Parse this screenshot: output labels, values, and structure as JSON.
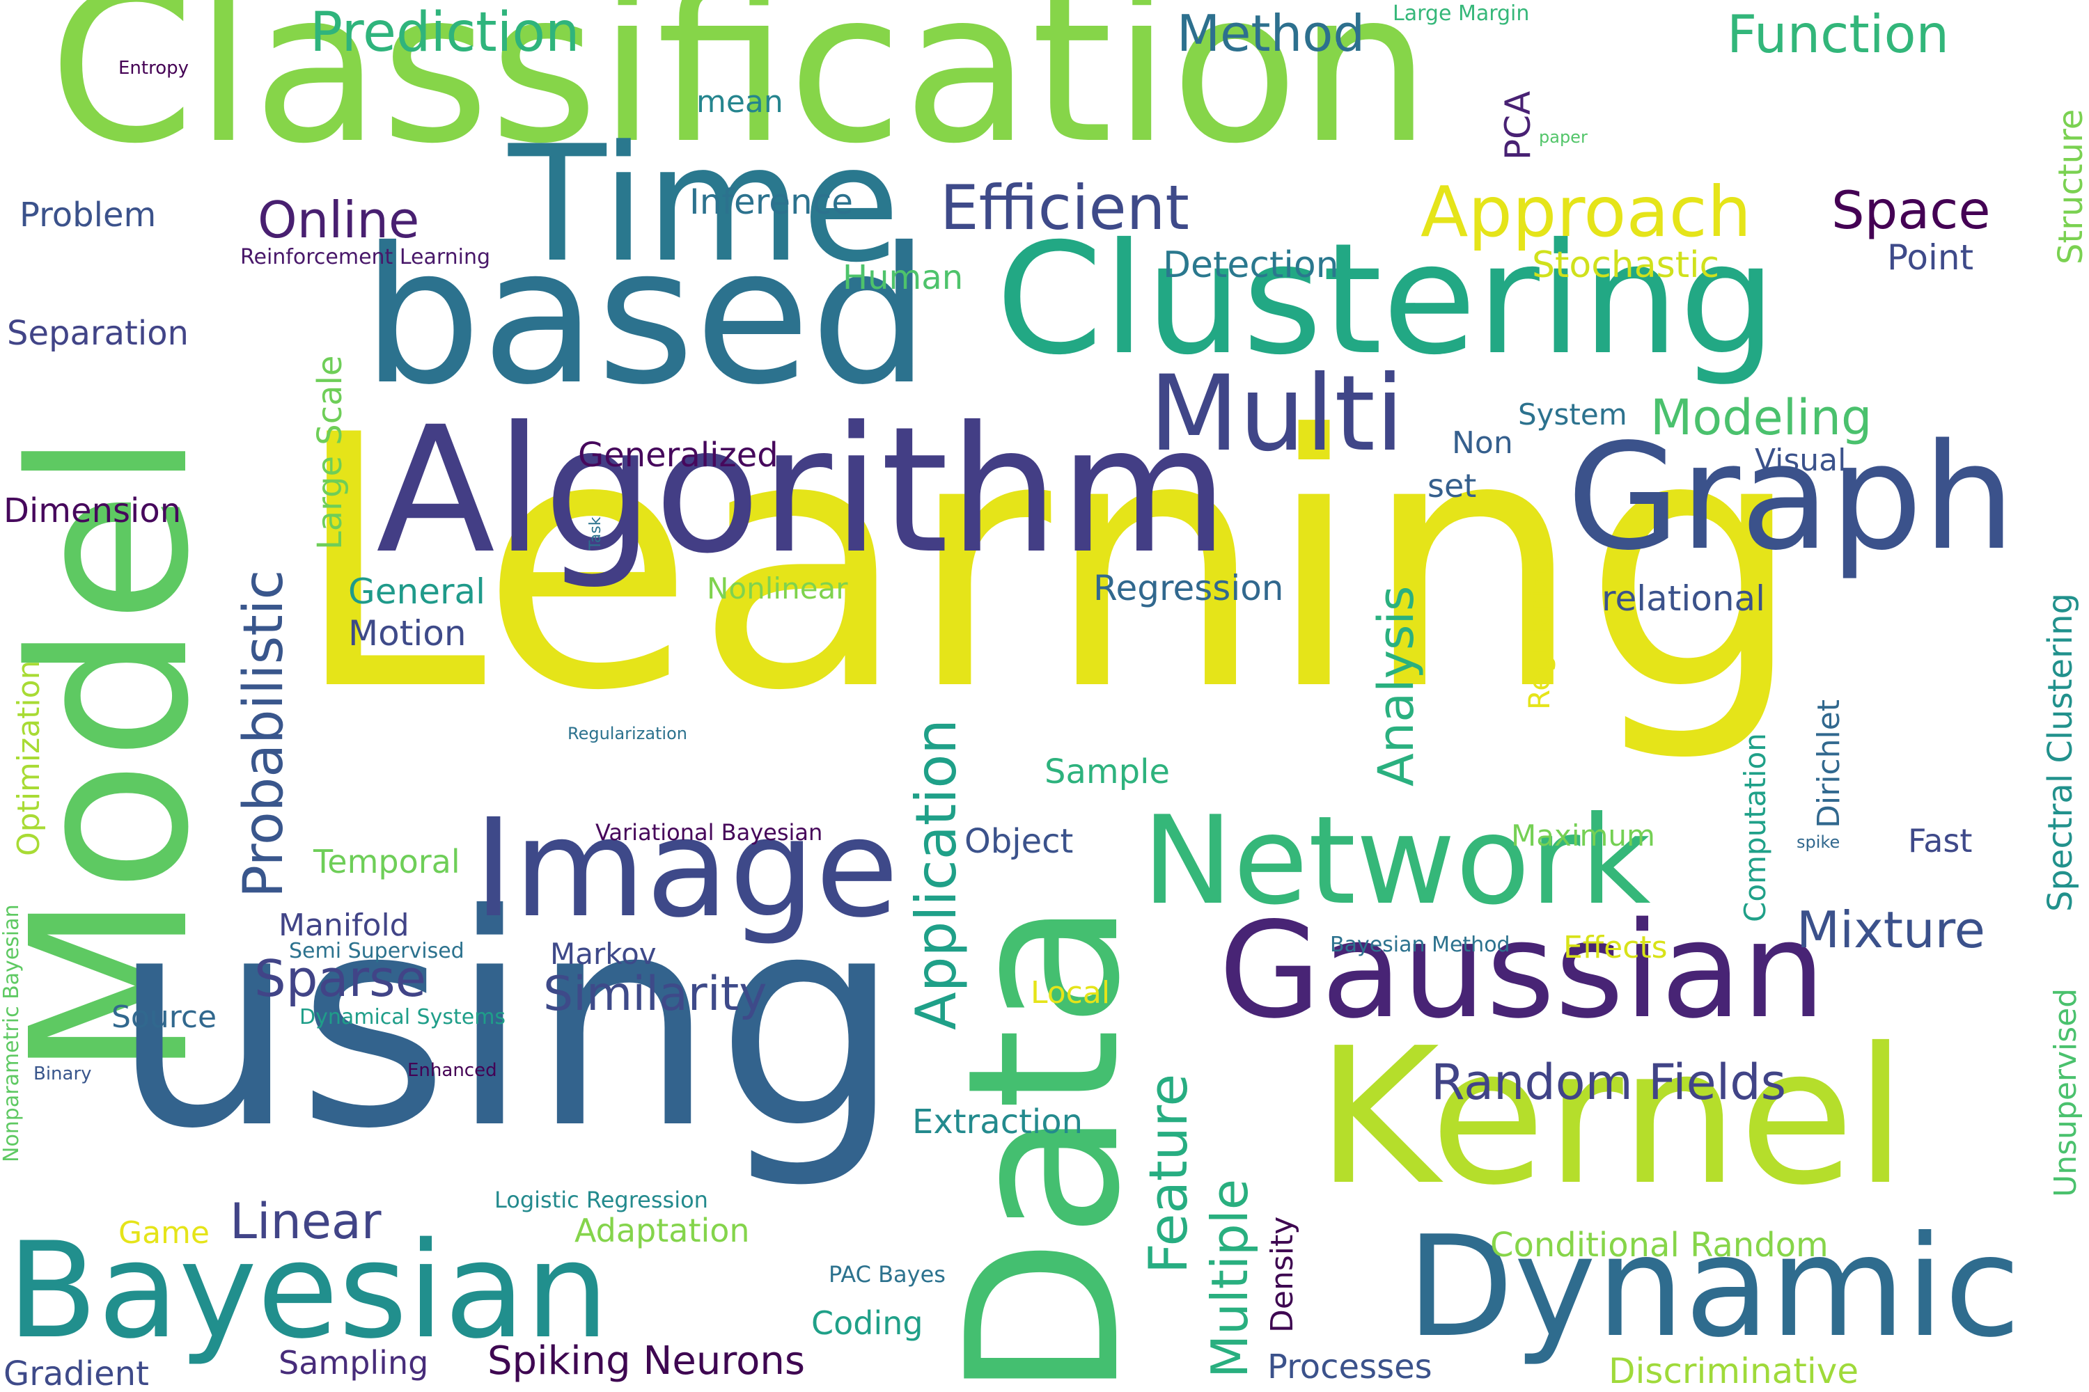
{
  "words": [
    {
      "text": "Classification",
      "color": "#86d549"
    },
    {
      "text": "Learning",
      "color": "#e5e419"
    },
    {
      "text": "Model",
      "color": "#5ec962"
    },
    {
      "text": "using",
      "color": "#33638d"
    },
    {
      "text": "based",
      "color": "#2c728e"
    },
    {
      "text": "Algorithm",
      "color": "#433e85"
    },
    {
      "text": "Time",
      "color": "#2a788e"
    },
    {
      "text": "Clustering",
      "color": "#22a884"
    },
    {
      "text": "Graph",
      "color": "#3b528b"
    },
    {
      "text": "Data",
      "color": "#44bf70"
    },
    {
      "text": "Kernel",
      "color": "#b5de2b"
    },
    {
      "text": "Gaussian",
      "color": "#482475"
    },
    {
      "text": "Network",
      "color": "#35b779"
    },
    {
      "text": "Image",
      "color": "#3e4989"
    },
    {
      "text": "Bayesian",
      "color": "#218f8d"
    },
    {
      "text": "Dynamic",
      "color": "#2f6c8e"
    },
    {
      "text": "Multi",
      "color": "#404688"
    },
    {
      "text": "Approach",
      "color": "#e5e419"
    },
    {
      "text": "Efficient",
      "color": "#3e4a89"
    },
    {
      "text": "Online",
      "color": "#481f70"
    },
    {
      "text": "Prediction",
      "color": "#2fb47c"
    },
    {
      "text": "Method",
      "color": "#2d708e"
    },
    {
      "text": "Function",
      "color": "#32b67a"
    },
    {
      "text": "Space",
      "color": "#440154"
    },
    {
      "text": "Probabilistic",
      "color": "#39568c"
    },
    {
      "text": "Application",
      "color": "#1fa088"
    },
    {
      "text": "Feature",
      "color": "#27ad81"
    },
    {
      "text": "Multiple",
      "color": "#29af7f"
    },
    {
      "text": "Analysis",
      "color": "#2ab07f"
    },
    {
      "text": "Mixture",
      "color": "#3b518b"
    },
    {
      "text": "Sparse",
      "color": "#414487"
    },
    {
      "text": "Similarity",
      "color": "#3e4a89"
    },
    {
      "text": "Linear",
      "color": "#414487"
    },
    {
      "text": "Random Fields",
      "color": "#414487"
    },
    {
      "text": "Modeling",
      "color": "#4ac16d"
    },
    {
      "text": "Stochastic",
      "color": "#d0e11c"
    },
    {
      "text": "Detection",
      "color": "#2a788e"
    },
    {
      "text": "Inference",
      "color": "#2c728e"
    },
    {
      "text": "Human",
      "color": "#4ec36b"
    },
    {
      "text": "Point",
      "color": "#3e4a89"
    },
    {
      "text": "Structure",
      "color": "#7ad151"
    },
    {
      "text": "PCA",
      "color": "#482173"
    },
    {
      "text": "paper",
      "color": "#52c569"
    },
    {
      "text": "mean",
      "color": "#25858e"
    },
    {
      "text": "Entropy",
      "color": "#440154"
    },
    {
      "text": "Large Margin",
      "color": "#35b779"
    },
    {
      "text": "Problem",
      "color": "#3b528b"
    },
    {
      "text": "Reinforcement Learning",
      "color": "#481769"
    },
    {
      "text": "Separation",
      "color": "#414487"
    },
    {
      "text": "Large Scale",
      "color": "#6ece58"
    },
    {
      "text": "Generalized",
      "color": "#46085c"
    },
    {
      "text": "System",
      "color": "#2c728e"
    },
    {
      "text": "Non",
      "color": "#355f8d"
    },
    {
      "text": "Visual",
      "color": "#3b528b"
    },
    {
      "text": "set",
      "color": "#355f8d"
    },
    {
      "text": "Dimension",
      "color": "#46085c"
    },
    {
      "text": "Task",
      "color": "#2c728e"
    },
    {
      "text": "General",
      "color": "#1f9a8a"
    },
    {
      "text": "Nonlinear",
      "color": "#7fd34e"
    },
    {
      "text": "Regression",
      "color": "#31688e"
    },
    {
      "text": "relational",
      "color": "#3b528b"
    },
    {
      "text": "Regularized",
      "color": "#e5e419"
    },
    {
      "text": "Spectral Clustering",
      "color": "#21918c"
    },
    {
      "text": "Dirichlet",
      "color": "#31688e"
    },
    {
      "text": "Motion",
      "color": "#3e4a89"
    },
    {
      "text": "Optimization",
      "color": "#a8db34"
    },
    {
      "text": "Regularization",
      "color": "#2c728e"
    },
    {
      "text": "Sample",
      "color": "#2db27d"
    },
    {
      "text": "Computation",
      "color": "#1fa088"
    },
    {
      "text": "Temporal",
      "color": "#6ece58"
    },
    {
      "text": "Variational Bayesian",
      "color": "#46075a"
    },
    {
      "text": "Object",
      "color": "#3b528b"
    },
    {
      "text": "Maximum",
      "color": "#75d054"
    },
    {
      "text": "spike",
      "color": "#31688e"
    },
    {
      "text": "Fast",
      "color": "#3e4989"
    },
    {
      "text": "Manifold",
      "color": "#414487"
    },
    {
      "text": "Semi Supervised",
      "color": "#2c728e"
    },
    {
      "text": "Markov",
      "color": "#3e4989"
    },
    {
      "text": "Bayesian Method",
      "color": "#2c728e"
    },
    {
      "text": "Effects",
      "color": "#d8e219"
    },
    {
      "text": "Unsupervised",
      "color": "#4ac16d"
    },
    {
      "text": "Nonparametric Bayesian",
      "color": "#5ec962"
    },
    {
      "text": "Local",
      "color": "#e5e419"
    },
    {
      "text": "Source",
      "color": "#31688e"
    },
    {
      "text": "Dynamical Systems",
      "color": "#1f9e89"
    },
    {
      "text": "Binary",
      "color": "#39568c"
    },
    {
      "text": "Enhanced",
      "color": "#440154"
    },
    {
      "text": "Extraction",
      "color": "#238a8d"
    },
    {
      "text": "Density",
      "color": "#3e0751"
    },
    {
      "text": "Logistic Regression",
      "color": "#238a8d"
    },
    {
      "text": "Adaptation",
      "color": "#84d44b"
    },
    {
      "text": "Game",
      "color": "#e5e419"
    },
    {
      "text": "Conditional Random",
      "color": "#86d549"
    },
    {
      "text": "PAC Bayes",
      "color": "#2c728e"
    },
    {
      "text": "Coding",
      "color": "#1fa088"
    },
    {
      "text": "Processes",
      "color": "#3b528b"
    },
    {
      "text": "Discriminative",
      "color": "#9fda3a"
    },
    {
      "text": "Gradient",
      "color": "#3e4a89"
    },
    {
      "text": "Sampling",
      "color": "#472c7a"
    },
    {
      "text": "Spiking Neurons",
      "color": "#3e0751"
    }
  ]
}
